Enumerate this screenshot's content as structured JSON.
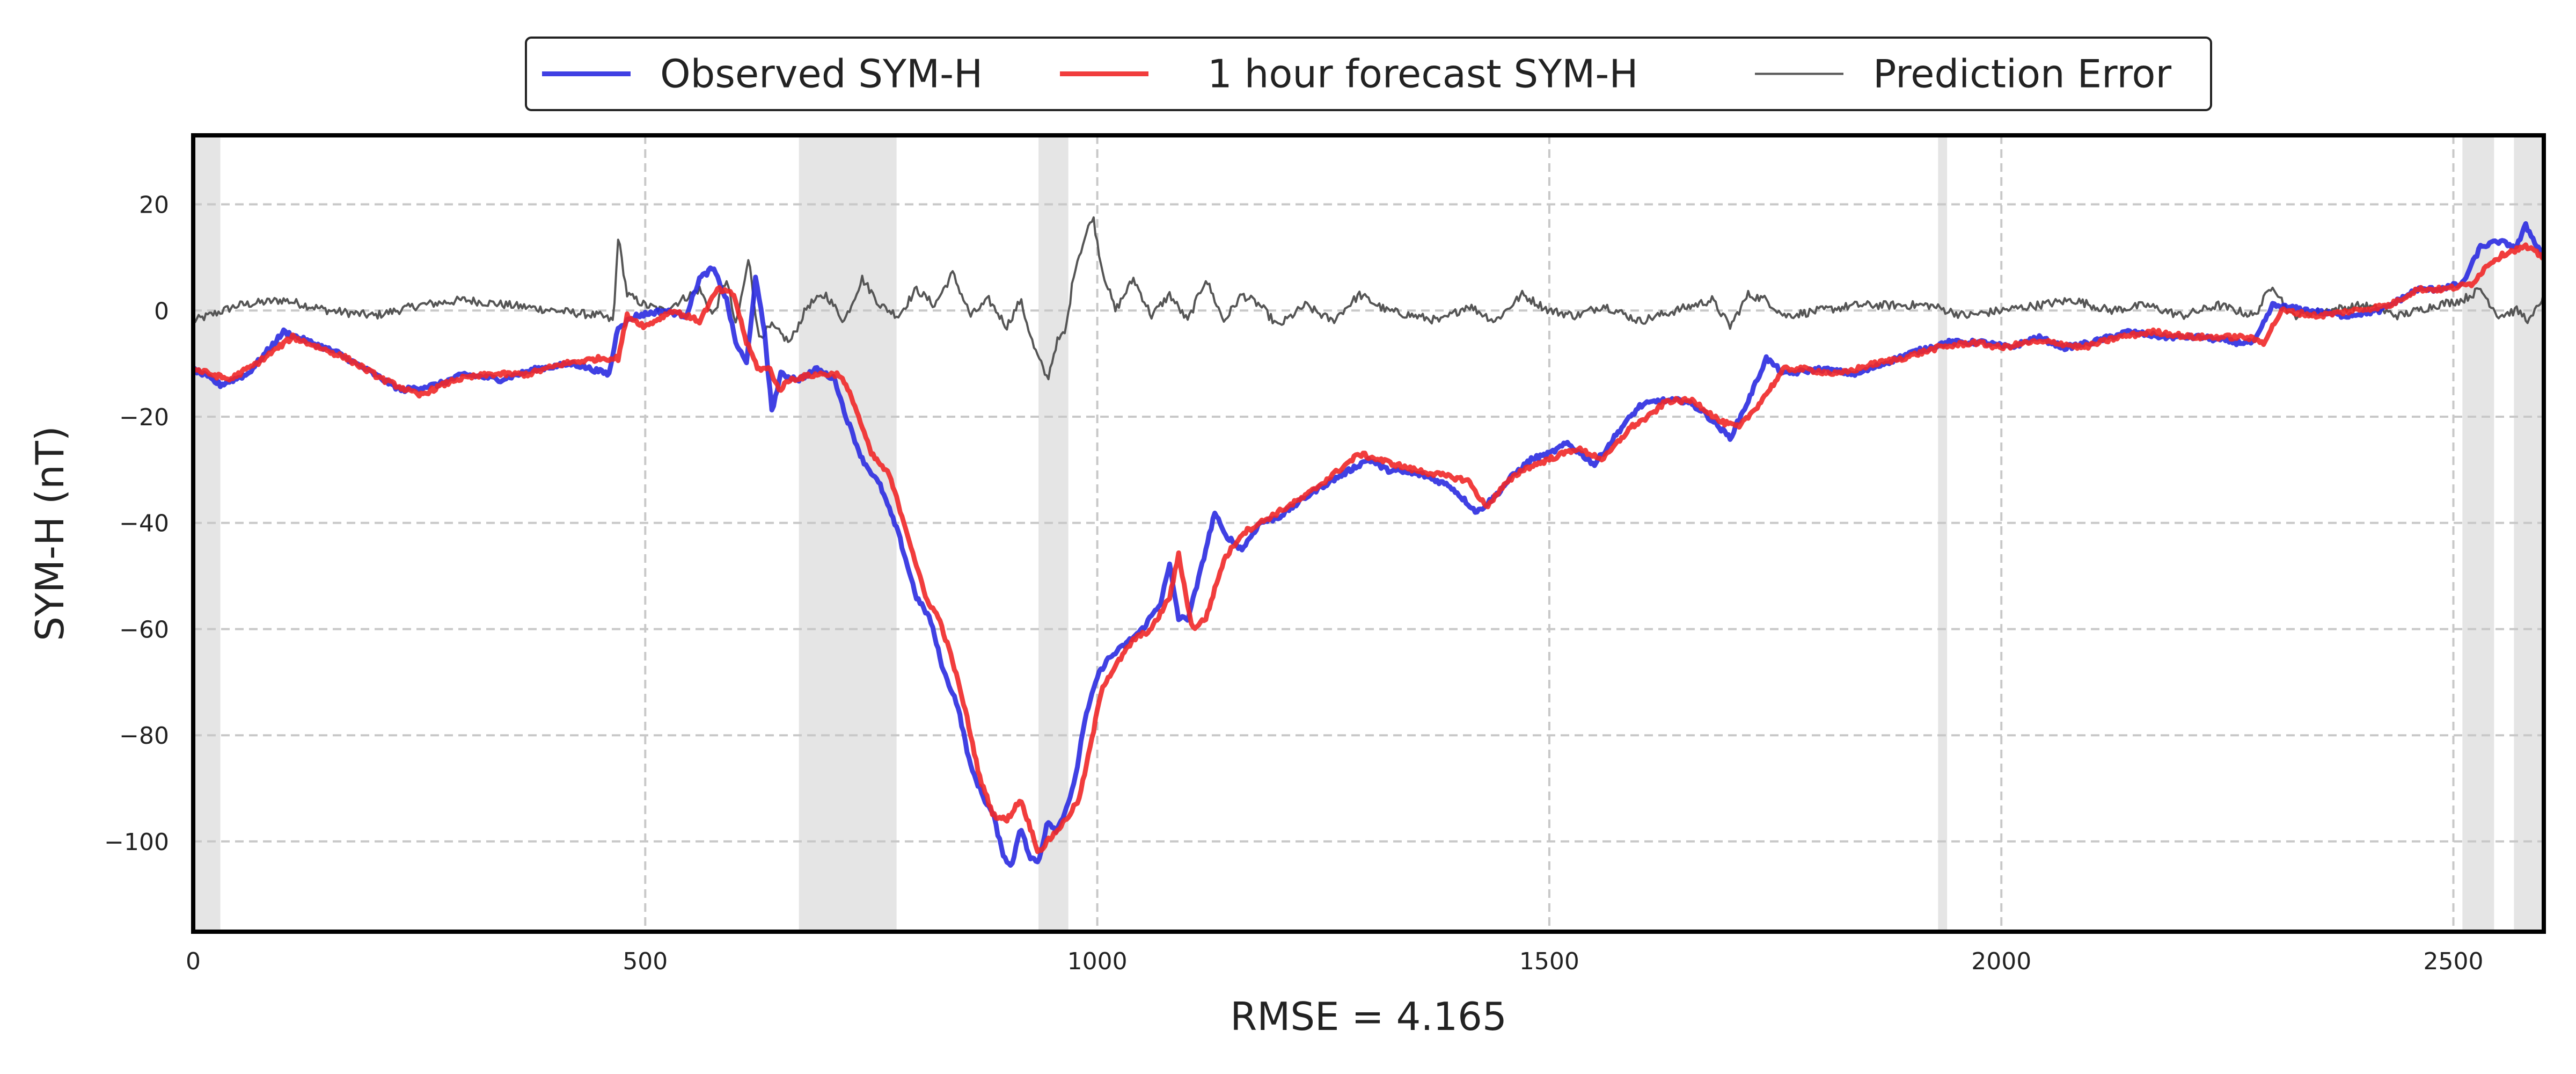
{
  "chart_data": {
    "type": "line",
    "title": "",
    "xlabel": "RMSE = 4.165",
    "ylabel": "SYM-H (nT)",
    "xlim": [
      0,
      2600
    ],
    "ylim": [
      -117,
      33
    ],
    "x_ticks": [
      0,
      500,
      1000,
      1500,
      2000,
      2500
    ],
    "x_tick_labels": [
      "0",
      "500",
      "1000",
      "1500",
      "2000",
      "2500"
    ],
    "y_ticks": [
      -100,
      -80,
      -60,
      -40,
      -20,
      0,
      20
    ],
    "y_tick_labels": [
      "−100",
      "−80",
      "−60",
      "−40",
      "−20",
      "0",
      "20"
    ],
    "grid": true,
    "legend_position": "top-center",
    "shaded_regions": [
      [
        0,
        30
      ],
      [
        670,
        778
      ],
      [
        935,
        968
      ],
      [
        1930,
        1940
      ],
      [
        2510,
        2545
      ],
      [
        2567,
        2600
      ]
    ],
    "series": [
      {
        "name": "Observed SYM-H",
        "color": "#2b2be0",
        "knots": [
          [
            0,
            -11
          ],
          [
            30,
            -14
          ],
          [
            60,
            -12
          ],
          [
            90,
            -6
          ],
          [
            100,
            -4
          ],
          [
            130,
            -6
          ],
          [
            160,
            -8
          ],
          [
            200,
            -12
          ],
          [
            230,
            -15
          ],
          [
            270,
            -14
          ],
          [
            300,
            -12
          ],
          [
            340,
            -13
          ],
          [
            380,
            -11
          ],
          [
            420,
            -10
          ],
          [
            460,
            -12
          ],
          [
            470,
            -3
          ],
          [
            490,
            -1
          ],
          [
            520,
            0
          ],
          [
            545,
            -1
          ],
          [
            560,
            6
          ],
          [
            575,
            8
          ],
          [
            590,
            2
          ],
          [
            600,
            -6
          ],
          [
            612,
            -10
          ],
          [
            622,
            6
          ],
          [
            632,
            -4
          ],
          [
            640,
            -19
          ],
          [
            650,
            -12
          ],
          [
            670,
            -13
          ],
          [
            690,
            -11
          ],
          [
            710,
            -13
          ],
          [
            720,
            -19
          ],
          [
            740,
            -28
          ],
          [
            760,
            -33
          ],
          [
            780,
            -42
          ],
          [
            800,
            -54
          ],
          [
            815,
            -58
          ],
          [
            830,
            -68
          ],
          [
            845,
            -74
          ],
          [
            860,
            -86
          ],
          [
            875,
            -92
          ],
          [
            885,
            -95
          ],
          [
            895,
            -102
          ],
          [
            905,
            -105
          ],
          [
            915,
            -97
          ],
          [
            925,
            -103
          ],
          [
            935,
            -104
          ],
          [
            945,
            -96
          ],
          [
            955,
            -98
          ],
          [
            965,
            -94
          ],
          [
            975,
            -89
          ],
          [
            985,
            -78
          ],
          [
            1000,
            -69
          ],
          [
            1010,
            -66
          ],
          [
            1030,
            -63
          ],
          [
            1050,
            -60
          ],
          [
            1070,
            -55
          ],
          [
            1080,
            -48
          ],
          [
            1090,
            -58
          ],
          [
            1100,
            -58
          ],
          [
            1110,
            -52
          ],
          [
            1130,
            -38
          ],
          [
            1140,
            -42
          ],
          [
            1160,
            -45
          ],
          [
            1180,
            -40
          ],
          [
            1200,
            -39
          ],
          [
            1240,
            -34
          ],
          [
            1270,
            -31
          ],
          [
            1300,
            -28
          ],
          [
            1320,
            -30
          ],
          [
            1360,
            -31
          ],
          [
            1390,
            -33
          ],
          [
            1420,
            -38
          ],
          [
            1440,
            -35
          ],
          [
            1460,
            -31
          ],
          [
            1480,
            -28
          ],
          [
            1500,
            -27
          ],
          [
            1520,
            -25
          ],
          [
            1550,
            -29
          ],
          [
            1580,
            -22
          ],
          [
            1600,
            -18
          ],
          [
            1620,
            -17
          ],
          [
            1650,
            -17
          ],
          [
            1670,
            -19
          ],
          [
            1700,
            -24
          ],
          [
            1720,
            -17
          ],
          [
            1740,
            -9
          ],
          [
            1760,
            -12
          ],
          [
            1800,
            -11
          ],
          [
            1840,
            -12
          ],
          [
            1870,
            -10
          ],
          [
            1900,
            -8
          ],
          [
            1940,
            -6
          ],
          [
            1980,
            -6
          ],
          [
            2010,
            -7
          ],
          [
            2040,
            -5
          ],
          [
            2070,
            -7
          ],
          [
            2100,
            -6
          ],
          [
            2140,
            -4
          ],
          [
            2180,
            -5
          ],
          [
            2220,
            -5
          ],
          [
            2260,
            -6
          ],
          [
            2280,
            -6
          ],
          [
            2300,
            1
          ],
          [
            2340,
            0
          ],
          [
            2380,
            -1
          ],
          [
            2420,
            0
          ],
          [
            2460,
            4
          ],
          [
            2480,
            4
          ],
          [
            2510,
            5
          ],
          [
            2530,
            12
          ],
          [
            2550,
            13
          ],
          [
            2570,
            12
          ],
          [
            2580,
            16
          ],
          [
            2590,
            13
          ],
          [
            2600,
            10
          ]
        ]
      },
      {
        "name": "1 hour forecast SYM-H",
        "color": "#f02828",
        "knots": [
          [
            0,
            -11
          ],
          [
            40,
            -13
          ],
          [
            70,
            -10
          ],
          [
            110,
            -5
          ],
          [
            140,
            -7
          ],
          [
            170,
            -9
          ],
          [
            210,
            -13
          ],
          [
            250,
            -16
          ],
          [
            290,
            -13
          ],
          [
            330,
            -12
          ],
          [
            370,
            -12
          ],
          [
            410,
            -10
          ],
          [
            450,
            -9
          ],
          [
            470,
            -9
          ],
          [
            480,
            -1
          ],
          [
            500,
            -3
          ],
          [
            530,
            0
          ],
          [
            560,
            -2
          ],
          [
            580,
            4
          ],
          [
            598,
            3
          ],
          [
            612,
            -6
          ],
          [
            625,
            -11
          ],
          [
            638,
            -11
          ],
          [
            648,
            -15
          ],
          [
            660,
            -13
          ],
          [
            690,
            -12
          ],
          [
            715,
            -12
          ],
          [
            730,
            -17
          ],
          [
            750,
            -27
          ],
          [
            770,
            -31
          ],
          [
            790,
            -42
          ],
          [
            810,
            -54
          ],
          [
            825,
            -58
          ],
          [
            840,
            -66
          ],
          [
            855,
            -76
          ],
          [
            870,
            -88
          ],
          [
            885,
            -95
          ],
          [
            900,
            -96
          ],
          [
            915,
            -92
          ],
          [
            925,
            -97
          ],
          [
            935,
            -102
          ],
          [
            950,
            -99
          ],
          [
            965,
            -96
          ],
          [
            980,
            -92
          ],
          [
            995,
            -80
          ],
          [
            1005,
            -71
          ],
          [
            1020,
            -67
          ],
          [
            1040,
            -62
          ],
          [
            1060,
            -60
          ],
          [
            1080,
            -54
          ],
          [
            1090,
            -46
          ],
          [
            1105,
            -60
          ],
          [
            1120,
            -58
          ],
          [
            1140,
            -47
          ],
          [
            1160,
            -42
          ],
          [
            1180,
            -40
          ],
          [
            1200,
            -38
          ],
          [
            1230,
            -35
          ],
          [
            1260,
            -31
          ],
          [
            1290,
            -27
          ],
          [
            1310,
            -28
          ],
          [
            1350,
            -30
          ],
          [
            1380,
            -31
          ],
          [
            1410,
            -32
          ],
          [
            1430,
            -37
          ],
          [
            1450,
            -33
          ],
          [
            1470,
            -30
          ],
          [
            1500,
            -28
          ],
          [
            1530,
            -26
          ],
          [
            1560,
            -28
          ],
          [
            1590,
            -22
          ],
          [
            1610,
            -20
          ],
          [
            1630,
            -17
          ],
          [
            1660,
            -17
          ],
          [
            1690,
            -21
          ],
          [
            1710,
            -22
          ],
          [
            1730,
            -18
          ],
          [
            1760,
            -11
          ],
          [
            1780,
            -11
          ],
          [
            1820,
            -12
          ],
          [
            1860,
            -10
          ],
          [
            1890,
            -9
          ],
          [
            1930,
            -7
          ],
          [
            1970,
            -6
          ],
          [
            2000,
            -7
          ],
          [
            2030,
            -6
          ],
          [
            2060,
            -6
          ],
          [
            2090,
            -7
          ],
          [
            2130,
            -5
          ],
          [
            2170,
            -4
          ],
          [
            2210,
            -5
          ],
          [
            2250,
            -5
          ],
          [
            2270,
            -5
          ],
          [
            2290,
            -6
          ],
          [
            2310,
            0
          ],
          [
            2350,
            -1
          ],
          [
            2390,
            0
          ],
          [
            2430,
            1
          ],
          [
            2460,
            4
          ],
          [
            2490,
            4
          ],
          [
            2520,
            5
          ],
          [
            2540,
            9
          ],
          [
            2560,
            11
          ],
          [
            2580,
            12
          ],
          [
            2600,
            10
          ]
        ]
      },
      {
        "name": "Prediction Error",
        "color": "#555555",
        "knots": [
          [
            0,
            -2
          ],
          [
            50,
            1
          ],
          [
            100,
            2
          ],
          [
            150,
            0
          ],
          [
            200,
            -1
          ],
          [
            250,
            1
          ],
          [
            300,
            2
          ],
          [
            350,
            1
          ],
          [
            400,
            0
          ],
          [
            450,
            -1
          ],
          [
            465,
            -2
          ],
          [
            470,
            14
          ],
          [
            480,
            3
          ],
          [
            500,
            1
          ],
          [
            520,
            0
          ],
          [
            540,
            2
          ],
          [
            560,
            4
          ],
          [
            575,
            -1
          ],
          [
            590,
            6
          ],
          [
            600,
            -3
          ],
          [
            615,
            10
          ],
          [
            625,
            -5
          ],
          [
            640,
            -3
          ],
          [
            660,
            -6
          ],
          [
            680,
            1
          ],
          [
            700,
            3
          ],
          [
            720,
            -2
          ],
          [
            740,
            6
          ],
          [
            760,
            1
          ],
          [
            780,
            -1
          ],
          [
            800,
            4
          ],
          [
            820,
            1
          ],
          [
            840,
            7
          ],
          [
            860,
            -1
          ],
          [
            880,
            2
          ],
          [
            900,
            -3
          ],
          [
            915,
            2
          ],
          [
            930,
            -7
          ],
          [
            945,
            -13
          ],
          [
            955,
            -6
          ],
          [
            965,
            -4
          ],
          [
            975,
            8
          ],
          [
            985,
            13
          ],
          [
            995,
            18
          ],
          [
            1005,
            8
          ],
          [
            1020,
            0
          ],
          [
            1040,
            6
          ],
          [
            1060,
            -1
          ],
          [
            1080,
            3
          ],
          [
            1100,
            -2
          ],
          [
            1120,
            6
          ],
          [
            1140,
            -2
          ],
          [
            1160,
            3
          ],
          [
            1180,
            1
          ],
          [
            1200,
            -3
          ],
          [
            1230,
            1
          ],
          [
            1260,
            -2
          ],
          [
            1290,
            3
          ],
          [
            1320,
            0
          ],
          [
            1350,
            -1
          ],
          [
            1380,
            -2
          ],
          [
            1410,
            1
          ],
          [
            1440,
            -2
          ],
          [
            1470,
            3
          ],
          [
            1500,
            0
          ],
          [
            1530,
            -1
          ],
          [
            1560,
            1
          ],
          [
            1600,
            -2
          ],
          [
            1640,
            0
          ],
          [
            1680,
            2
          ],
          [
            1700,
            -3
          ],
          [
            1720,
            3
          ],
          [
            1740,
            2
          ],
          [
            1760,
            -1
          ],
          [
            1800,
            0
          ],
          [
            1840,
            1
          ],
          [
            1880,
            1
          ],
          [
            1920,
            1
          ],
          [
            1960,
            -1
          ],
          [
            2000,
            0
          ],
          [
            2040,
            1
          ],
          [
            2080,
            2
          ],
          [
            2120,
            0
          ],
          [
            2160,
            1
          ],
          [
            2200,
            -1
          ],
          [
            2240,
            1
          ],
          [
            2280,
            -1
          ],
          [
            2300,
            5
          ],
          [
            2320,
            -1
          ],
          [
            2360,
            0
          ],
          [
            2400,
            1
          ],
          [
            2440,
            -1
          ],
          [
            2480,
            1
          ],
          [
            2510,
            2
          ],
          [
            2530,
            4
          ],
          [
            2550,
            -1
          ],
          [
            2570,
            0
          ],
          [
            2585,
            -2
          ],
          [
            2600,
            3
          ]
        ]
      }
    ]
  }
}
